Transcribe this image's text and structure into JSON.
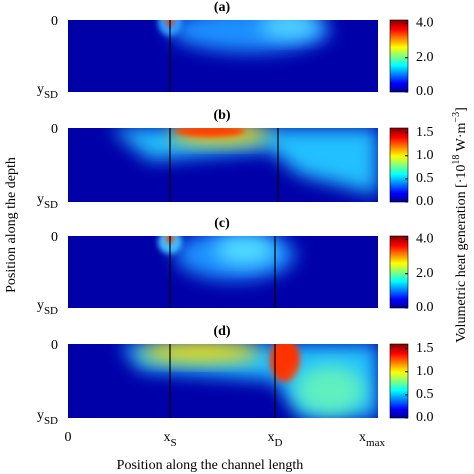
{
  "panels": [
    {
      "label": "(a)",
      "range": [
        0,
        4.2
      ],
      "colorbar_ticks": [
        {
          "value": 0,
          "label": "0.0"
        },
        {
          "value": 2,
          "label": "2.0"
        },
        {
          "value": 4,
          "label": "4.0"
        }
      ]
    },
    {
      "label": "(b)",
      "range": [
        0,
        1.6
      ],
      "colorbar_ticks": [
        {
          "value": 0,
          "label": "0.0"
        },
        {
          "value": 0.5,
          "label": "0.5"
        },
        {
          "value": 1,
          "label": "1.0"
        },
        {
          "value": 1.5,
          "label": "1.5"
        }
      ]
    },
    {
      "label": "(c)",
      "range": [
        0,
        4.2
      ],
      "colorbar_ticks": [
        {
          "value": 0,
          "label": "0.0"
        },
        {
          "value": 2,
          "label": "2.0"
        },
        {
          "value": 4,
          "label": "4.0"
        }
      ]
    },
    {
      "label": "(d)",
      "range": [
        0,
        1.6
      ],
      "colorbar_ticks": [
        {
          "value": 0,
          "label": "0.0"
        },
        {
          "value": 0.5,
          "label": "0.5"
        },
        {
          "value": 1,
          "label": "1.0"
        },
        {
          "value": 1.5,
          "label": "1.5"
        }
      ]
    }
  ],
  "y_tick_labels": [
    {
      "main": "0"
    },
    {
      "main": "y",
      "sub": "SD"
    }
  ],
  "x_tick_labels": [
    {
      "main": "0"
    },
    {
      "main": "x",
      "sub": "S"
    },
    {
      "main": "x",
      "sub": "D"
    },
    {
      "main": "x",
      "sub": "max"
    }
  ],
  "x_label": "Position along the channel length",
  "y_label": "Position along the depth",
  "colorbar_label": {
    "text": "Volumetric heat generation [·10",
    "exp": "18",
    "unit": " W·m",
    "unit_exp": "−3",
    "close": "]"
  }
}
